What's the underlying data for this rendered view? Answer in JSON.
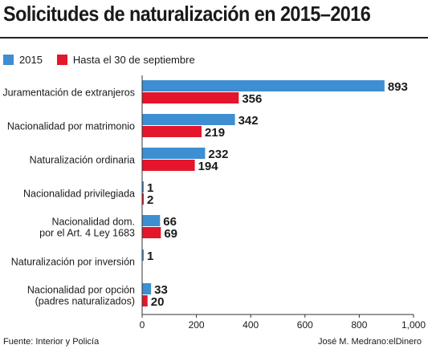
{
  "title": "Solicitudes de naturalización en 2015–2016",
  "legend": {
    "items": [
      {
        "label": "2015",
        "color": "#3d8fd1"
      },
      {
        "label": "Hasta el 30 de septiembre",
        "color": "#e3162b"
      }
    ]
  },
  "footer": {
    "source": "Fuente: Interior y Policía",
    "credit": "José M. Medrano:elDinero"
  },
  "chart_data": {
    "type": "bar",
    "orientation": "horizontal",
    "title": "Solicitudes de naturalización en 2015–2016",
    "categories": [
      [
        "Juramentación de extranjeros"
      ],
      [
        "Nacionalidad por matrimonio"
      ],
      [
        "Naturalización ordinaria"
      ],
      [
        "Nacionalidad privilegiada"
      ],
      [
        "Nacionalidad dom.",
        "por el Art. 4 Ley 1683"
      ],
      [
        "Naturalización por inversión"
      ],
      [
        "Nacionalidad por opción",
        "(padres naturalizados)"
      ]
    ],
    "series": [
      {
        "name": "2015",
        "color": "#3d8fd1",
        "values": [
          893,
          342,
          232,
          1,
          66,
          1,
          33
        ]
      },
      {
        "name": "Hasta el 30 de septiembre",
        "color": "#e3162b",
        "values": [
          356,
          219,
          194,
          2,
          69,
          null,
          20
        ]
      }
    ],
    "xlim": [
      0,
      1000
    ],
    "xticks": [
      0,
      200,
      400,
      600,
      800,
      1000
    ],
    "xtick_labels": [
      "0",
      "200",
      "400",
      "600",
      "800",
      "1,000"
    ],
    "grid": false,
    "legend_position": "top-left"
  }
}
